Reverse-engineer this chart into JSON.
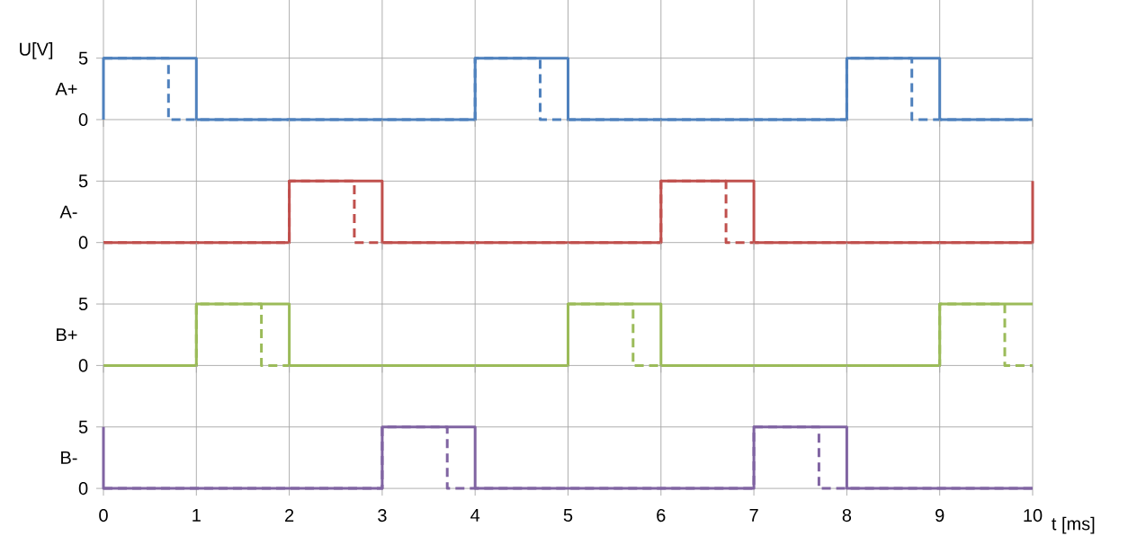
{
  "chart_data": [
    {
      "type": "step",
      "ylabel": "A+",
      "annotations": [
        "U[V]"
      ],
      "xlim": [
        0,
        10
      ],
      "xticks": [
        0,
        1,
        2,
        3,
        4,
        5,
        6,
        7,
        8,
        9,
        10
      ],
      "ylim": [
        0,
        10
      ],
      "yticks": [
        0,
        5,
        {
          "value": 10,
          "label": null
        }
      ],
      "grid": true,
      "tick_labels": "y",
      "series": [
        {
          "color": "#4f81bd",
          "line_style": "solid",
          "x": [
            0,
            0,
            1,
            4,
            5,
            8,
            9,
            10
          ],
          "values": [
            0,
            5,
            0,
            5,
            0,
            5,
            0,
            0
          ]
        },
        {
          "color": "#4f81bd",
          "line_style": "dashed",
          "x": [
            0,
            0.7,
            4,
            4.7,
            8,
            8.7,
            10
          ],
          "values": [
            5,
            0,
            5,
            0,
            5,
            0,
            0
          ]
        }
      ]
    },
    {
      "type": "step",
      "ylabel": "A-",
      "xlim": [
        0,
        10
      ],
      "xticks": [
        0,
        1,
        2,
        3,
        4,
        5,
        6,
        7,
        8,
        9,
        10
      ],
      "ylim": [
        0,
        10
      ],
      "yticks": [
        0,
        5
      ],
      "grid": true,
      "tick_labels": "y",
      "series": [
        {
          "color": "#c0504d",
          "line_style": "solid",
          "x": [
            0,
            2,
            3,
            6,
            7,
            10,
            10
          ],
          "values": [
            0,
            5,
            0,
            5,
            0,
            0,
            5
          ]
        },
        {
          "color": "#c0504d",
          "line_style": "dashed",
          "x": [
            0,
            2,
            2.7,
            6,
            6.7,
            10
          ],
          "values": [
            0,
            5,
            0,
            5,
            0,
            0
          ]
        }
      ]
    },
    {
      "type": "step",
      "ylabel": "B+",
      "xlim": [
        0,
        10
      ],
      "xticks": [
        0,
        1,
        2,
        3,
        4,
        5,
        6,
        7,
        8,
        9,
        10
      ],
      "ylim": [
        0,
        10
      ],
      "yticks": [
        0,
        5
      ],
      "grid": true,
      "tick_labels": "y",
      "series": [
        {
          "color": "#9bbb59",
          "line_style": "solid",
          "x": [
            0,
            1,
            2,
            5,
            6,
            9,
            10
          ],
          "values": [
            0,
            5,
            0,
            5,
            0,
            5,
            5
          ]
        },
        {
          "color": "#9bbb59",
          "line_style": "dashed",
          "x": [
            0,
            1,
            1.7,
            5,
            5.7,
            9,
            9.7,
            10
          ],
          "values": [
            0,
            5,
            0,
            5,
            0,
            5,
            0,
            0
          ]
        }
      ]
    },
    {
      "type": "step",
      "ylabel": "B-",
      "xlabel": "t [ms]",
      "xlim": [
        0,
        10
      ],
      "xticks": [
        0,
        1,
        2,
        3,
        4,
        5,
        6,
        7,
        8,
        9,
        10
      ],
      "ylim": [
        0,
        10
      ],
      "yticks": [
        0,
        5
      ],
      "grid": true,
      "series": [
        {
          "color": "#8064a2",
          "line_style": "solid",
          "x": [
            0,
            0,
            3,
            4,
            7,
            8,
            10
          ],
          "values": [
            5,
            0,
            5,
            0,
            5,
            0,
            0
          ]
        },
        {
          "color": "#8064a2",
          "line_style": "dashed",
          "x": [
            0,
            3,
            3.7,
            7,
            7.7,
            10
          ],
          "values": [
            0,
            5,
            0,
            5,
            0,
            0
          ]
        }
      ]
    }
  ]
}
